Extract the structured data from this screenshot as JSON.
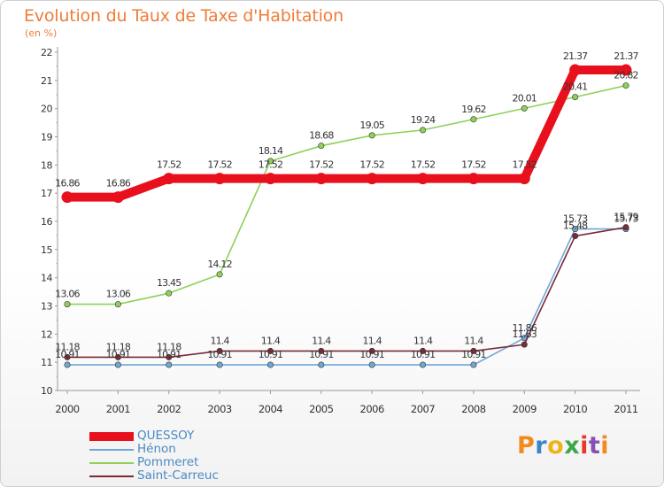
{
  "title": "Evolution du Taux de Taxe d'Habitation",
  "unit_label": "(en %)",
  "logo": {
    "text": "Proxiti",
    "letter_colors": [
      "#f28a1c",
      "#3a86c8",
      "#f0b21a",
      "#3ca84a",
      "#e6392b",
      "#8a4fb5",
      "#f28a1c"
    ]
  },
  "chart_data": {
    "type": "line",
    "x": [
      "2000",
      "2001",
      "2002",
      "2003",
      "2004",
      "2005",
      "2006",
      "2007",
      "2008",
      "2009",
      "2010",
      "2011"
    ],
    "y_ticks": [
      "10",
      "11",
      "12",
      "13",
      "14",
      "15",
      "16",
      "17",
      "18",
      "19",
      "20",
      "21",
      "22"
    ],
    "ylim": [
      10,
      22
    ],
    "grid": false,
    "legend_position": "bottom-left",
    "series": [
      {
        "name": "QUESSOY",
        "color": "#e8101d",
        "thick": true,
        "values": [
          16.86,
          16.86,
          17.52,
          17.52,
          17.52,
          17.52,
          17.52,
          17.52,
          17.52,
          17.52,
          21.37,
          21.37
        ],
        "labels": [
          "16.86",
          "16.86",
          "17.52",
          "17.52",
          "17.52",
          "17.52",
          "17.52",
          "17.52",
          "17.52",
          "17.52",
          "21.37",
          "21.37"
        ]
      },
      {
        "name": "Hénon",
        "color": "#6fa6d6",
        "thick": false,
        "values": [
          10.91,
          10.91,
          10.91,
          10.91,
          10.91,
          10.91,
          10.91,
          10.91,
          10.91,
          11.86,
          15.73,
          15.73
        ],
        "labels": [
          "10.91",
          "10.91",
          "10.91",
          "10.91",
          "10.91",
          "10.91",
          "10.91",
          "10.91",
          "10.91",
          "11.86",
          "15.73",
          "15.73"
        ]
      },
      {
        "name": "Pommeret",
        "color": "#8fd15a",
        "thick": false,
        "values": [
          13.06,
          13.06,
          13.45,
          14.12,
          18.14,
          18.68,
          19.05,
          19.24,
          19.62,
          20.01,
          20.41,
          20.82
        ],
        "labels": [
          "13.06",
          "13.06",
          "13.45",
          "14.12",
          "18.14",
          "18.68",
          "19.05",
          "19.24",
          "19.62",
          "20.01",
          "20.41",
          "20.82"
        ]
      },
      {
        "name": "Saint-Carreuc",
        "color": "#7a2a38",
        "thick": false,
        "values": [
          11.18,
          11.18,
          11.18,
          11.4,
          11.4,
          11.4,
          11.4,
          11.4,
          11.4,
          11.63,
          15.48,
          15.79
        ],
        "labels": [
          "11.18",
          "11.18",
          "11.18",
          "11.4",
          "11.4",
          "11.4",
          "11.4",
          "11.4",
          "11.4",
          "11.63",
          "15.48",
          "15.79"
        ]
      }
    ]
  }
}
